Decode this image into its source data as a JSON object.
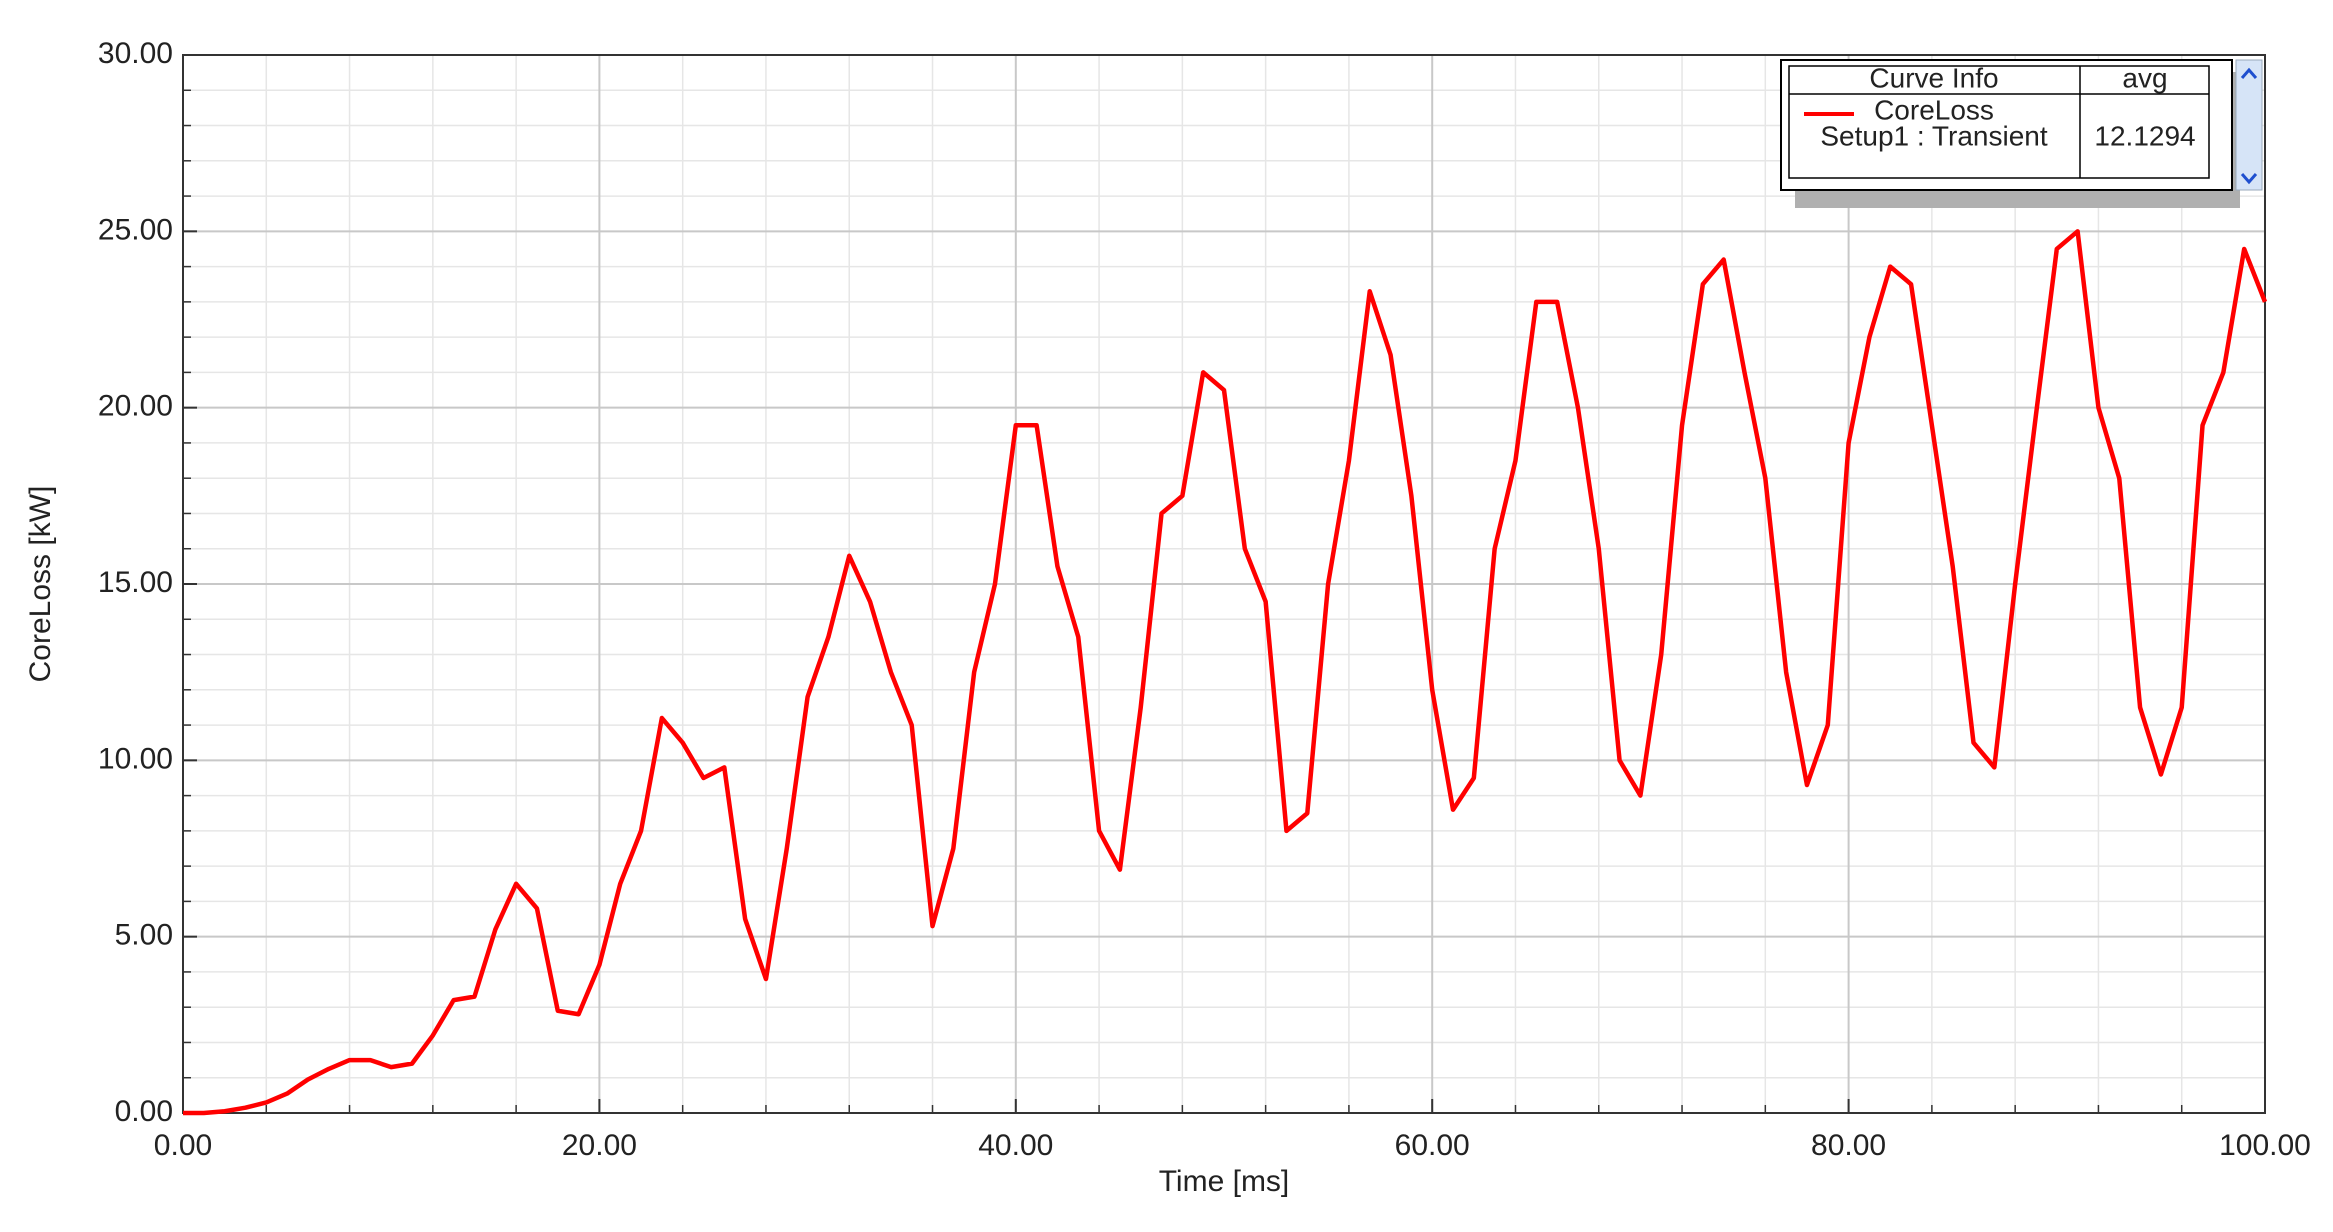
{
  "chart_data": {
    "type": "line",
    "xlabel": "Time [ms]",
    "ylabel": "CoreLoss [kW]",
    "x": [
      0,
      1,
      2,
      3,
      4,
      5,
      6,
      7,
      8,
      9,
      10,
      11,
      12,
      13,
      14,
      15,
      16,
      17,
      18,
      19,
      20,
      21,
      22,
      23,
      24,
      25,
      26,
      27,
      28,
      29,
      30,
      31,
      32,
      33,
      34,
      35,
      36,
      37,
      38,
      39,
      40,
      41,
      42,
      43,
      44,
      45,
      46,
      47,
      48,
      49,
      50,
      51,
      52,
      53,
      54,
      55,
      56,
      57,
      58,
      59,
      60,
      61,
      62,
      63,
      64,
      65,
      66,
      67,
      68,
      69,
      70,
      71,
      72,
      73,
      74,
      75,
      76,
      77,
      78,
      79,
      80,
      81,
      82,
      83,
      84,
      85,
      86,
      87,
      88,
      89,
      90,
      91,
      92,
      93,
      94,
      95,
      96,
      97,
      98,
      99,
      100
    ],
    "series": [
      {
        "name": "CoreLoss",
        "color": "#ff0000",
        "values": [
          0,
          0,
          0.05,
          0.15,
          0.3,
          0.55,
          0.95,
          1.25,
          1.5,
          1.5,
          1.3,
          1.4,
          2.2,
          3.2,
          3.3,
          5.2,
          6.5,
          5.8,
          2.9,
          2.8,
          4.2,
          6.5,
          8.0,
          11.2,
          10.5,
          9.5,
          9.8,
          5.5,
          3.8,
          7.5,
          11.8,
          13.5,
          15.8,
          14.5,
          12.5,
          11,
          5.3,
          7.5,
          12.5,
          15,
          19.5,
          19.5,
          15.5,
          13.5,
          8,
          6.9,
          11.5,
          17,
          17.5,
          21,
          20.5,
          16,
          14.5,
          8,
          8.5,
          15,
          18.5,
          23.3,
          21.5,
          17.5,
          12,
          8.6,
          9.5,
          16,
          18.5,
          23,
          23,
          20,
          16,
          10,
          9,
          13,
          19.5,
          23.5,
          24.2,
          21,
          18,
          12.5,
          9.3,
          11,
          19,
          22,
          24,
          23.5,
          19.5,
          15.5,
          10.5,
          9.8,
          15,
          19.8,
          24.5,
          25,
          20,
          18,
          11.5,
          9.6,
          11.5,
          19.5,
          21,
          24.5,
          23
        ]
      }
    ],
    "legend_table": {
      "header_name": "Curve Info",
      "header_value": "avg",
      "context": "Setup1 : Transient",
      "avg": 12.1294
    },
    "xlim": [
      0,
      100
    ],
    "xticks": [
      {
        "value": 0,
        "label": "0.00"
      },
      {
        "value": 20,
        "label": "20.00"
      },
      {
        "value": 40,
        "label": "40.00"
      },
      {
        "value": 60,
        "label": "60.00"
      },
      {
        "value": 80,
        "label": "80.00"
      },
      {
        "value": 100,
        "label": "100.00"
      }
    ],
    "ylim": [
      0,
      30
    ],
    "yticks": [
      {
        "value": 0,
        "label": "0.00"
      },
      {
        "value": 5,
        "label": "5.00"
      },
      {
        "value": 10,
        "label": "10.00"
      },
      {
        "value": 15,
        "label": "15.00"
      },
      {
        "value": 20,
        "label": "20.00"
      },
      {
        "value": 25,
        "label": "25.00"
      },
      {
        "value": 30,
        "label": "30.00"
      }
    ],
    "grid": true
  }
}
